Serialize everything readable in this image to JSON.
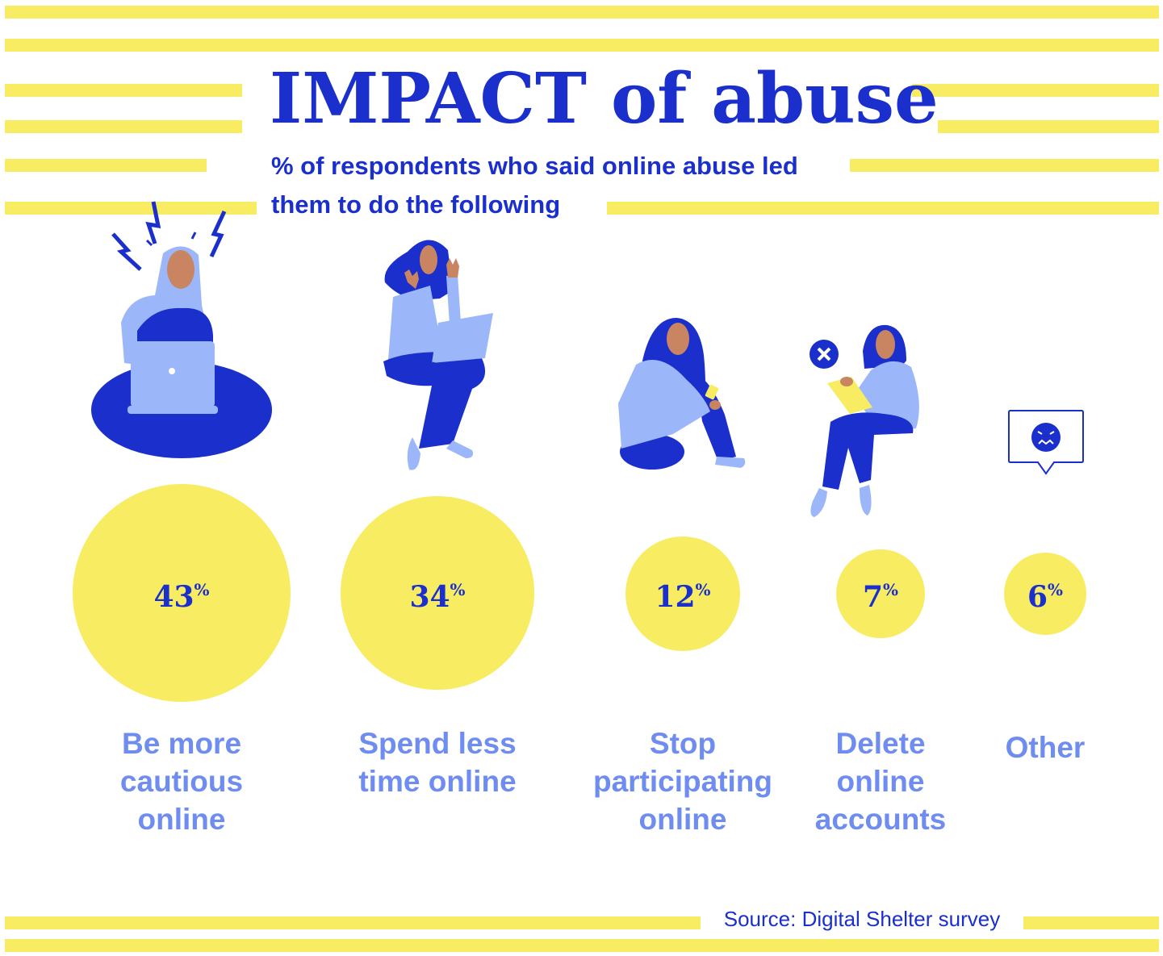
{
  "title": "IMPACT of abuse",
  "subtitle": "% of respondents who said online abuse led them to do the following",
  "source": "Source: Digital Shelter survey",
  "colors": {
    "accent_yellow": "#f7ec62",
    "title_blue": "#1a2fcc",
    "label_blue": "#6f8cf0",
    "light_blue": "#9bb7fa",
    "skin": "#c98462"
  },
  "chart_data": {
    "type": "bubble",
    "unit": "%",
    "categories": [
      "Be more cautious online",
      "Spend less time online",
      "Stop participating online",
      "Delete online accounts",
      "Other"
    ],
    "values": [
      43,
      34,
      12,
      7,
      6
    ],
    "title": "IMPACT of abuse",
    "subtitle": "% of respondents who said online abuse led them to do the following"
  }
}
